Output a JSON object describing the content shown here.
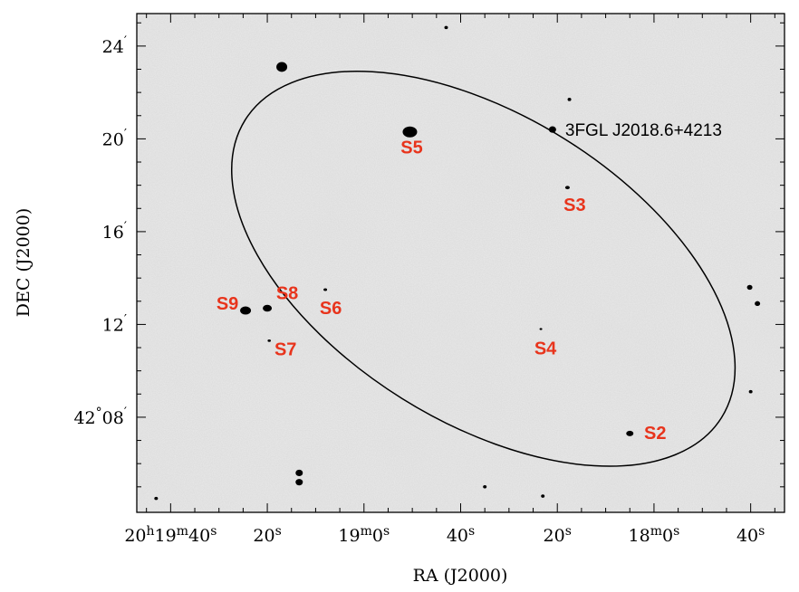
{
  "chart_data": {
    "type": "image",
    "xlabel": "RA (J2000)",
    "ylabel": "DEC (J2000)",
    "x_ticks": [
      {
        "ra_sec": 1180,
        "label_main": "20",
        "sup1": "h",
        "mid": "19",
        "sup2": "m",
        "tail": "40",
        "sup3": "s"
      },
      {
        "ra_sec": 1160,
        "label_main": "20",
        "sup1": "s"
      },
      {
        "ra_sec": 1140,
        "label_main": "19",
        "sup1": "m",
        "mid": "0",
        "sup2": "s"
      },
      {
        "ra_sec": 1120,
        "label_main": "40",
        "sup1": "s"
      },
      {
        "ra_sec": 1100,
        "label_main": "20",
        "sup1": "s"
      },
      {
        "ra_sec": 1080,
        "label_main": "18",
        "sup1": "m",
        "mid": "0",
        "sup2": "s"
      },
      {
        "ra_sec": 1060,
        "label_main": "40",
        "sup1": "s"
      }
    ],
    "y_ticks": [
      {
        "dec_arcmin": 24,
        "label": "24",
        "prefix": ""
      },
      {
        "dec_arcmin": 20,
        "label": "20",
        "prefix": ""
      },
      {
        "dec_arcmin": 16,
        "label": "16",
        "prefix": ""
      },
      {
        "dec_arcmin": 12,
        "label": "12",
        "prefix": ""
      },
      {
        "dec_arcmin": 8,
        "label": "08",
        "prefix": "42"
      }
    ],
    "x_range": [
      1187,
      1053
    ],
    "y_range": [
      3.9,
      25.4
    ],
    "ellipse": {
      "ra_center": 1115.3,
      "dec_center": 14.4,
      "semi_major_arcmin": 12.1,
      "semi_minor_arcmin": 6.6,
      "pa_deg": -32
    },
    "fermi_label": "3FGL J2018.6+4213",
    "sources": [
      {
        "name": "S2",
        "ra": 1085.0,
        "dec": 7.3
      },
      {
        "name": "S3",
        "ra": 1097.9,
        "dec": 17.9
      },
      {
        "name": "S4",
        "ra": 1103.4,
        "dec": 11.8
      },
      {
        "name": "S5",
        "ra": 1130.5,
        "dec": 20.3
      },
      {
        "name": "S6",
        "ra": 1148.0,
        "dec": 13.5
      },
      {
        "name": "S7",
        "ra": 1159.6,
        "dec": 11.3
      },
      {
        "name": "S8",
        "ra": 1160.0,
        "dec": 12.7
      },
      {
        "name": "S9",
        "ra": 1164.5,
        "dec": 12.6
      }
    ],
    "extra_blobs": [
      {
        "ra": 1157.0,
        "dec": 23.1,
        "size": 6
      },
      {
        "ra": 1101.0,
        "dec": 20.4,
        "size": 4
      },
      {
        "ra": 1060.2,
        "dec": 13.6,
        "size": 3
      },
      {
        "ra": 1058.6,
        "dec": 12.9,
        "size": 3
      },
      {
        "ra": 1060.0,
        "dec": 9.1,
        "size": 2
      },
      {
        "ra": 1153.4,
        "dec": 5.6,
        "size": 4
      },
      {
        "ra": 1153.4,
        "dec": 5.2,
        "size": 4
      },
      {
        "ra": 1123.0,
        "dec": 24.8,
        "size": 2
      },
      {
        "ra": 1115.0,
        "dec": 5.0,
        "size": 2
      },
      {
        "ra": 1103.0,
        "dec": 4.6,
        "size": 2
      },
      {
        "ra": 1183.0,
        "dec": 4.5,
        "size": 2
      },
      {
        "ra": 1097.5,
        "dec": 21.7,
        "size": 2
      }
    ]
  }
}
